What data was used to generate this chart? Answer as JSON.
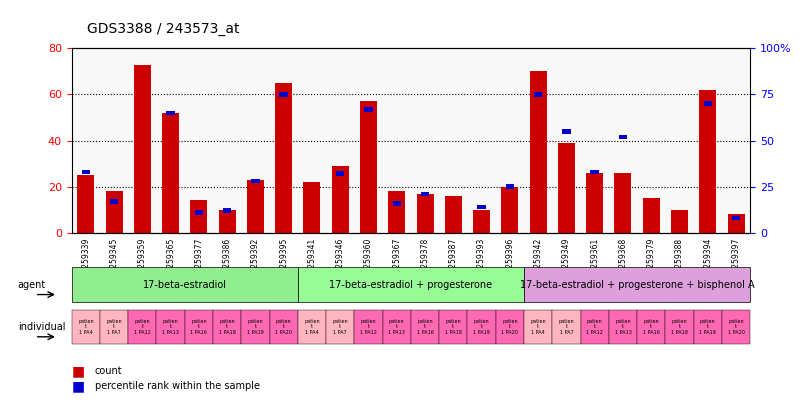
{
  "title": "GDS3388 / 243573_at",
  "gsm_labels": [
    "GSM259339",
    "GSM259345",
    "GSM259359",
    "GSM259365",
    "GSM259377",
    "GSM259386",
    "GSM259392",
    "GSM259395",
    "GSM259341",
    "GSM259346",
    "GSM259360",
    "GSM259367",
    "GSM259378",
    "GSM259387",
    "GSM259393",
    "GSM259396",
    "GSM259342",
    "GSM259349",
    "GSM259361",
    "GSM259368",
    "GSM259379",
    "GSM259388",
    "GSM259394",
    "GSM259397"
  ],
  "count_values": [
    25,
    18,
    73,
    52,
    14,
    10,
    23,
    65,
    22,
    29,
    57,
    18,
    17,
    16,
    10,
    20,
    70,
    39,
    26,
    26,
    15,
    10,
    62,
    8
  ],
  "percentile_values": [
    33,
    17,
    0,
    65,
    11,
    12,
    28,
    75,
    0,
    32,
    67,
    16,
    21,
    0,
    14,
    25,
    75,
    55,
    33,
    52,
    0,
    0,
    70,
    8
  ],
  "agent_groups": [
    {
      "label": "17-beta-estradiol",
      "start": 0,
      "end": 8,
      "color": "#90EE90"
    },
    {
      "label": "17-beta-estradiol + progesterone",
      "start": 8,
      "end": 16,
      "color": "#98FB98"
    },
    {
      "label": "17-beta-estradiol + progesterone + bisphenol A",
      "start": 16,
      "end": 24,
      "color": "#DDA0DD"
    }
  ],
  "individual_labels": [
    "patient 1 PA4",
    "patient 1 PA7",
    "patient 1 PA12",
    "patient 1 PA13",
    "patient 1 PA16",
    "patient 1 PA18",
    "patient 1 PA19",
    "patient 1 PA20",
    "patient 1 PA4",
    "patient 1 PA7",
    "patient 1 PA12",
    "patient 1 PA13",
    "patient 1 PA16",
    "patient 1 PA18",
    "patient 1 PA19",
    "patient 1 PA20",
    "patient 1 PA4",
    "patient 1 PA7",
    "patient 1 PA12",
    "patient 1 PA13",
    "patient 1 PA16",
    "patient 1 PA18",
    "patient 1 PA19",
    "patient 1 PA20"
  ],
  "individual_short": [
    "1 PA4",
    "1 PA7",
    "1 PA12",
    "1 PA13",
    "1 PA16",
    "1 PA18",
    "1 PA19",
    "1 PA20",
    "1 PA4",
    "1 PA7",
    "1 PA12",
    "1 PA13",
    "1 PA16",
    "1 PA18",
    "1 PA19",
    "1 PA20",
    "1 PA4",
    "1 PA7",
    "1 PA12",
    "1 PA13",
    "1 PA16",
    "1 PA18",
    "1 PA19",
    "1 PA20"
  ],
  "bar_color_red": "#CC0000",
  "bar_color_blue": "#0000CC",
  "ylim_left": [
    0,
    80
  ],
  "ylim_right": [
    0,
    100
  ],
  "yticks_left": [
    0,
    20,
    40,
    60,
    80
  ],
  "yticks_right": [
    0,
    25,
    50,
    75,
    100
  ],
  "background_color": "#ffffff",
  "plot_bg": "#f0f0f0"
}
